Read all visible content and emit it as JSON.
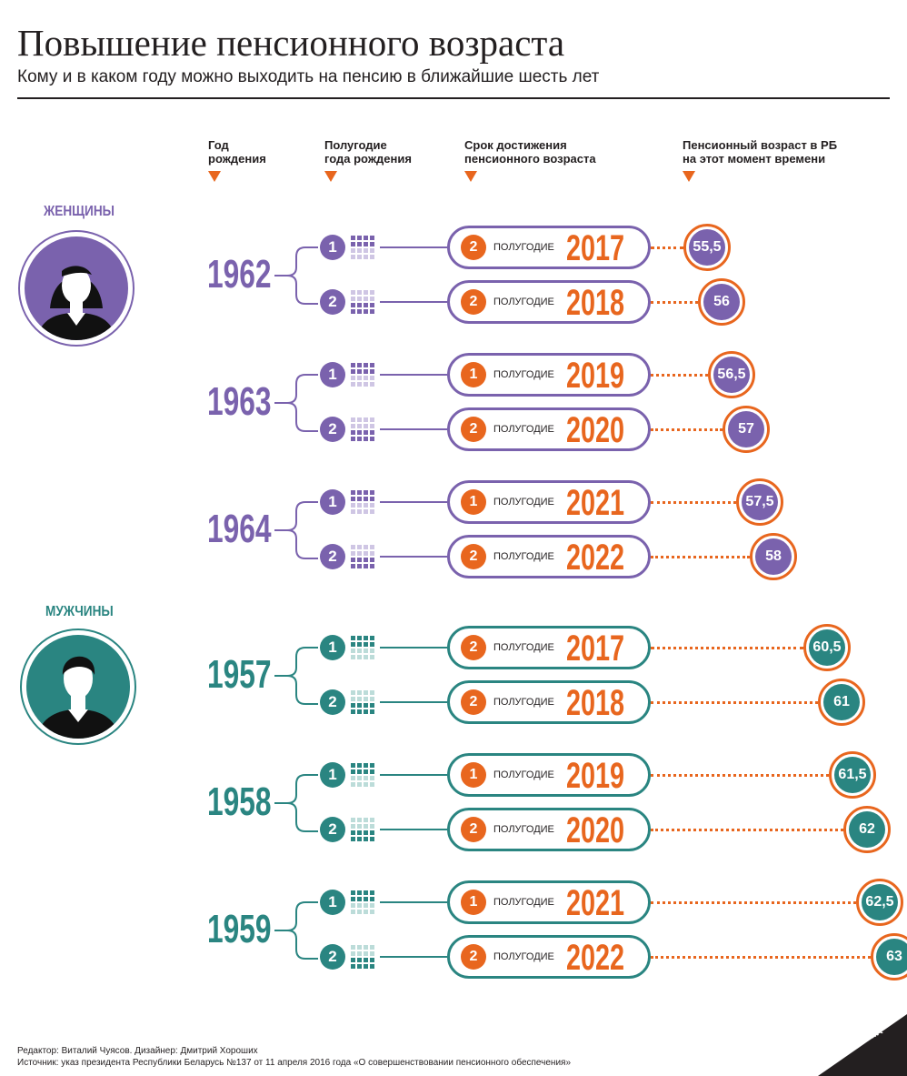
{
  "title": "Повышение пенсионного возраста",
  "subtitle": "Кому и в каком году можно выходить на пенсию в ближайшие шесть лет",
  "headers": {
    "birth_year": [
      "Год",
      "рождения"
    ],
    "half_year": [
      "Полугодие",
      "года рождения"
    ],
    "deadline": [
      "Срок достижения",
      "пенсионного возраста"
    ],
    "age": [
      "Пенсионный возраст в РБ",
      "на этот момент времени"
    ]
  },
  "half_word": "ПОЛУГОДИЕ",
  "colors": {
    "women": "#7a62ad",
    "men": "#2a8581",
    "accent": "#e8661e",
    "grid_light": "#cfc6e4",
    "grid_light_men": "#bcdcd9"
  },
  "groups": [
    {
      "label": "ЖЕНЩИНЫ",
      "icon": "woman-avatar-icon",
      "years": [
        {
          "year": "1962",
          "rows": [
            {
              "half": "1",
              "target_half": "2",
              "target_year": "2017",
              "age": "55,5"
            },
            {
              "half": "2",
              "target_half": "2",
              "target_year": "2018",
              "age": "56"
            }
          ]
        },
        {
          "year": "1963",
          "rows": [
            {
              "half": "1",
              "target_half": "1",
              "target_year": "2019",
              "age": "56,5"
            },
            {
              "half": "2",
              "target_half": "2",
              "target_year": "2020",
              "age": "57"
            }
          ]
        },
        {
          "year": "1964",
          "rows": [
            {
              "half": "1",
              "target_half": "1",
              "target_year": "2021",
              "age": "57,5"
            },
            {
              "half": "2",
              "target_half": "2",
              "target_year": "2022",
              "age": "58"
            }
          ]
        }
      ]
    },
    {
      "label": "МУЖЧИНЫ",
      "icon": "man-avatar-icon",
      "years": [
        {
          "year": "1957",
          "rows": [
            {
              "half": "1",
              "target_half": "2",
              "target_year": "2017",
              "age": "60,5"
            },
            {
              "half": "2",
              "target_half": "2",
              "target_year": "2018",
              "age": "61"
            }
          ]
        },
        {
          "year": "1958",
          "rows": [
            {
              "half": "1",
              "target_half": "1",
              "target_year": "2019",
              "age": "61,5"
            },
            {
              "half": "2",
              "target_half": "2",
              "target_year": "2020",
              "age": "62"
            }
          ]
        },
        {
          "year": "1959",
          "rows": [
            {
              "half": "1",
              "target_half": "1",
              "target_year": "2021",
              "age": "62,5"
            },
            {
              "half": "2",
              "target_half": "2",
              "target_year": "2022",
              "age": "63"
            }
          ]
        }
      ]
    }
  ],
  "footer": {
    "credits": "Редактор: Виталий Чуясов. Дизайнер: Дмитрий Хороших",
    "source": "Источник: указ президента Республики Беларусь №137 от 11 апреля 2016 года «О совершенствовании пенсионного обеспечения»"
  },
  "logo": "SPUTNIK"
}
